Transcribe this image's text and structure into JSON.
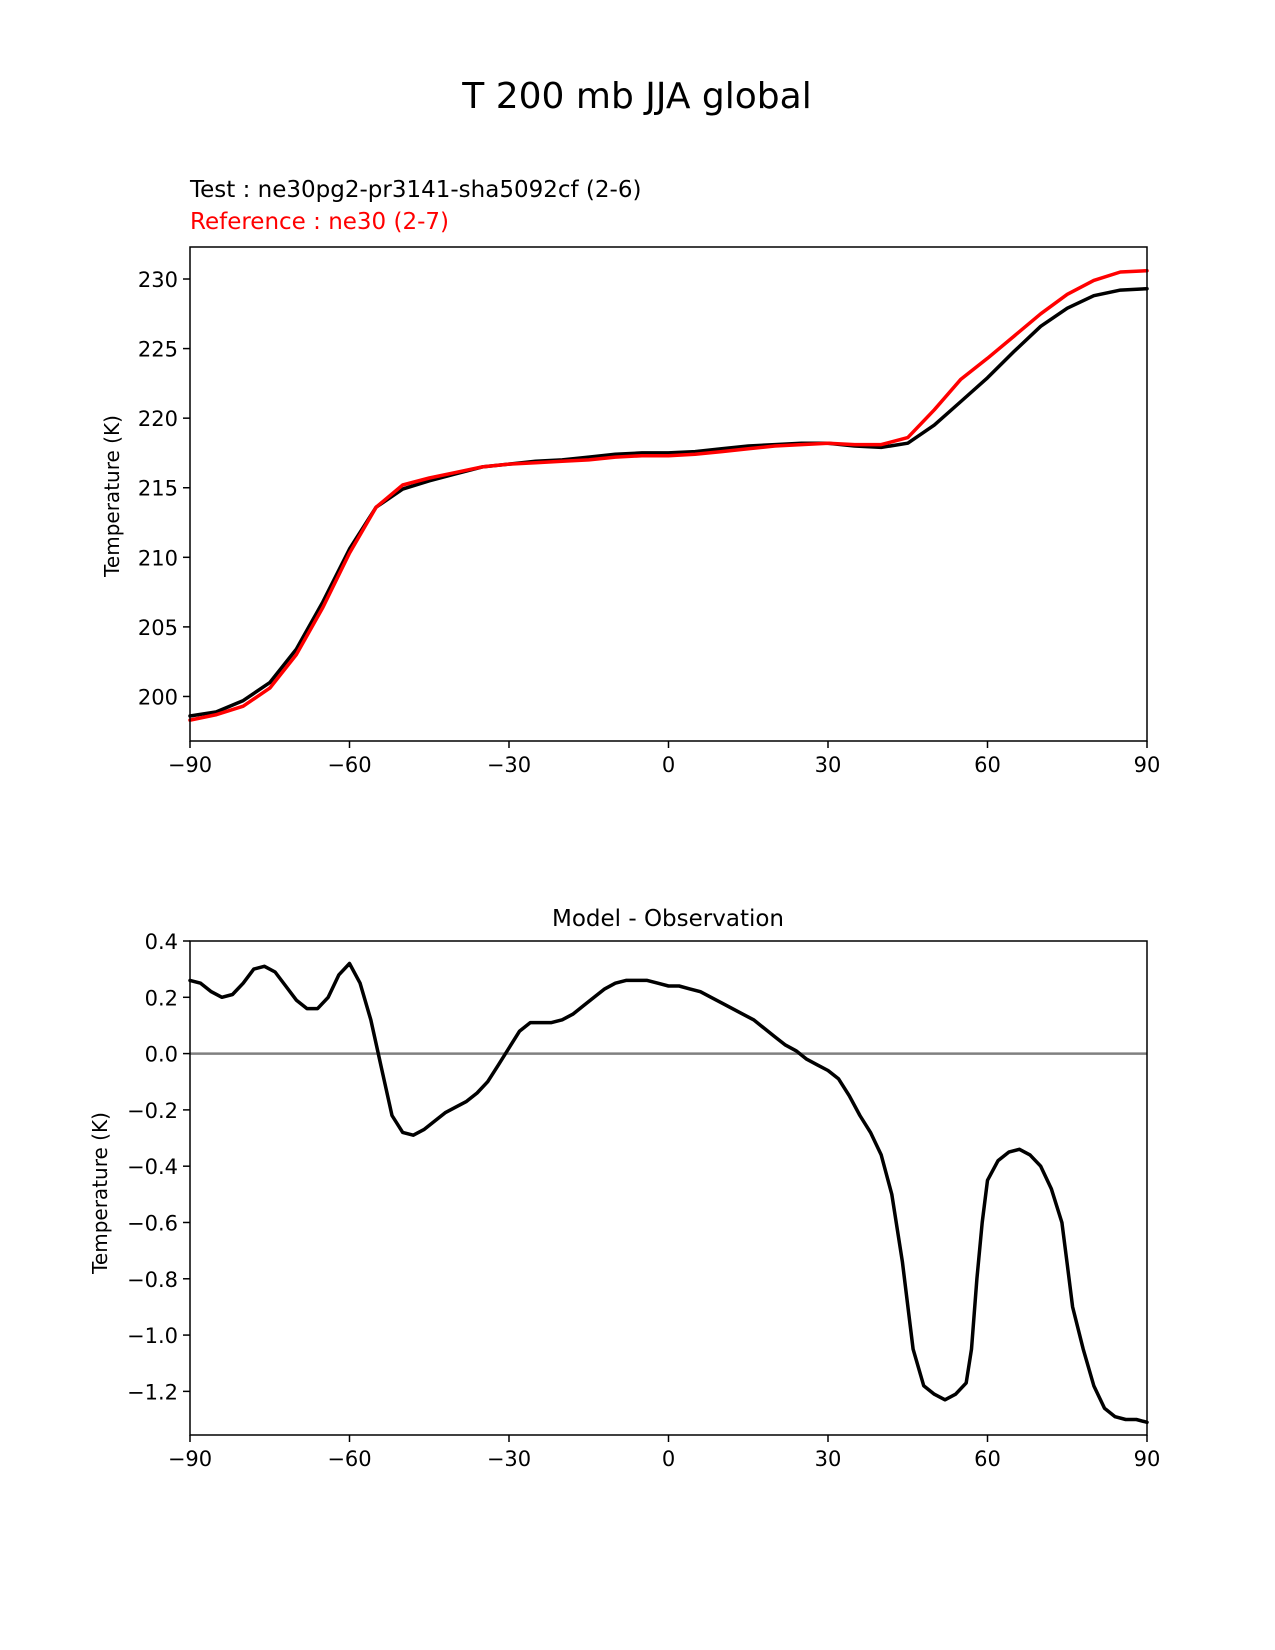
{
  "figure": {
    "title": "T 200 mb JJA global"
  },
  "chart_data": [
    {
      "type": "line",
      "test_label": "Test : ne30pg2-pr3141-sha5092cf (2-6)",
      "reference_label": "Reference : ne30 (2-7)",
      "xlabel": "",
      "ylabel": "Temperature (K)",
      "xlim": [
        -90,
        90
      ],
      "ylim": [
        196.8,
        232.3
      ],
      "xticks": [
        -90,
        -60,
        -30,
        0,
        30,
        60,
        90
      ],
      "xtick_labels": [
        "−90",
        "−60",
        "−30",
        "0",
        "30",
        "60",
        "90"
      ],
      "yticks": [
        200,
        205,
        210,
        215,
        220,
        225,
        230
      ],
      "ytick_labels": [
        "200",
        "205",
        "210",
        "215",
        "220",
        "225",
        "230"
      ],
      "series": [
        {
          "name": "Test",
          "color": "#000000",
          "x": [
            -90,
            -85,
            -80,
            -75,
            -70,
            -65,
            -60,
            -55,
            -50,
            -45,
            -40,
            -35,
            -30,
            -25,
            -20,
            -15,
            -10,
            -5,
            0,
            5,
            10,
            15,
            20,
            25,
            30,
            35,
            40,
            45,
            50,
            55,
            60,
            65,
            70,
            75,
            80,
            85,
            90
          ],
          "y": [
            198.6,
            198.9,
            199.7,
            201.0,
            203.4,
            206.8,
            210.6,
            213.6,
            214.9,
            215.5,
            216.0,
            216.5,
            216.7,
            216.9,
            217.0,
            217.2,
            217.4,
            217.5,
            217.5,
            217.6,
            217.8,
            218.0,
            218.1,
            218.2,
            218.2,
            218.0,
            217.9,
            218.2,
            219.5,
            221.2,
            222.9,
            224.8,
            226.6,
            227.9,
            228.8,
            229.2,
            229.3
          ]
        },
        {
          "name": "Reference",
          "color": "#ff0000",
          "x": [
            -90,
            -85,
            -80,
            -75,
            -70,
            -65,
            -60,
            -55,
            -50,
            -45,
            -40,
            -35,
            -30,
            -25,
            -20,
            -15,
            -10,
            -5,
            0,
            5,
            10,
            15,
            20,
            25,
            30,
            35,
            40,
            45,
            50,
            55,
            60,
            65,
            70,
            75,
            80,
            85,
            90
          ],
          "y": [
            198.3,
            198.7,
            199.3,
            200.6,
            203.0,
            206.4,
            210.3,
            213.6,
            215.2,
            215.7,
            216.1,
            216.5,
            216.7,
            216.8,
            216.9,
            217.0,
            217.2,
            217.3,
            217.3,
            217.4,
            217.6,
            217.8,
            218.0,
            218.1,
            218.2,
            218.1,
            218.1,
            218.6,
            220.6,
            222.8,
            224.3,
            225.9,
            227.5,
            228.9,
            229.9,
            230.5,
            230.6
          ]
        }
      ]
    },
    {
      "type": "line",
      "title": "Model - Observation",
      "xlabel": "",
      "ylabel": "Temperature (K)",
      "xlim": [
        -90,
        90
      ],
      "ylim": [
        -1.355,
        0.4
      ],
      "xticks": [
        -90,
        -60,
        -30,
        0,
        30,
        60,
        90
      ],
      "xtick_labels": [
        "−90",
        "−60",
        "−30",
        "0",
        "30",
        "60",
        "90"
      ],
      "yticks": [
        -1.2,
        -1.0,
        -0.8,
        -0.6,
        -0.4,
        -0.2,
        0.0,
        0.2,
        0.4
      ],
      "ytick_labels": [
        "−1.2",
        "−1.0",
        "−0.8",
        "−0.6",
        "−0.4",
        "−0.2",
        "0.0",
        "0.2",
        "0.4"
      ],
      "zero_line": {
        "y": 0.0,
        "color": "#808080"
      },
      "series": [
        {
          "name": "Model - Observation",
          "color": "#000000",
          "x": [
            -90,
            -88,
            -86,
            -84,
            -82,
            -80,
            -78,
            -76,
            -74,
            -72,
            -70,
            -68,
            -66,
            -64,
            -62,
            -60,
            -58,
            -56,
            -54,
            -52,
            -50,
            -48,
            -46,
            -44,
            -42,
            -40,
            -38,
            -36,
            -34,
            -32,
            -30,
            -28,
            -26,
            -24,
            -22,
            -20,
            -18,
            -16,
            -14,
            -12,
            -10,
            -8,
            -6,
            -4,
            -2,
            0,
            2,
            4,
            6,
            8,
            10,
            12,
            14,
            16,
            18,
            20,
            22,
            24,
            26,
            28,
            30,
            32,
            34,
            36,
            38,
            40,
            42,
            44,
            46,
            48,
            50,
            52,
            54,
            56,
            57,
            58,
            59,
            60,
            62,
            64,
            66,
            68,
            70,
            72,
            74,
            75,
            76,
            78,
            80,
            82,
            84,
            86,
            88,
            90
          ],
          "y": [
            0.26,
            0.25,
            0.22,
            0.2,
            0.21,
            0.25,
            0.3,
            0.31,
            0.29,
            0.24,
            0.19,
            0.16,
            0.16,
            0.2,
            0.28,
            0.32,
            0.25,
            0.12,
            -0.05,
            -0.22,
            -0.28,
            -0.29,
            -0.27,
            -0.24,
            -0.21,
            -0.19,
            -0.17,
            -0.14,
            -0.1,
            -0.04,
            0.02,
            0.08,
            0.11,
            0.11,
            0.11,
            0.12,
            0.14,
            0.17,
            0.2,
            0.23,
            0.25,
            0.26,
            0.26,
            0.26,
            0.25,
            0.24,
            0.24,
            0.23,
            0.22,
            0.2,
            0.18,
            0.16,
            0.14,
            0.12,
            0.09,
            0.06,
            0.03,
            0.01,
            -0.02,
            -0.04,
            -0.06,
            -0.09,
            -0.15,
            -0.22,
            -0.28,
            -0.36,
            -0.5,
            -0.74,
            -1.05,
            -1.18,
            -1.21,
            -1.23,
            -1.21,
            -1.17,
            -1.05,
            -0.8,
            -0.6,
            -0.45,
            -0.38,
            -0.35,
            -0.34,
            -0.36,
            -0.4,
            -0.48,
            -0.6,
            -0.75,
            -0.9,
            -1.05,
            -1.18,
            -1.26,
            -1.29,
            -1.3,
            -1.3,
            -1.31
          ]
        }
      ]
    }
  ]
}
